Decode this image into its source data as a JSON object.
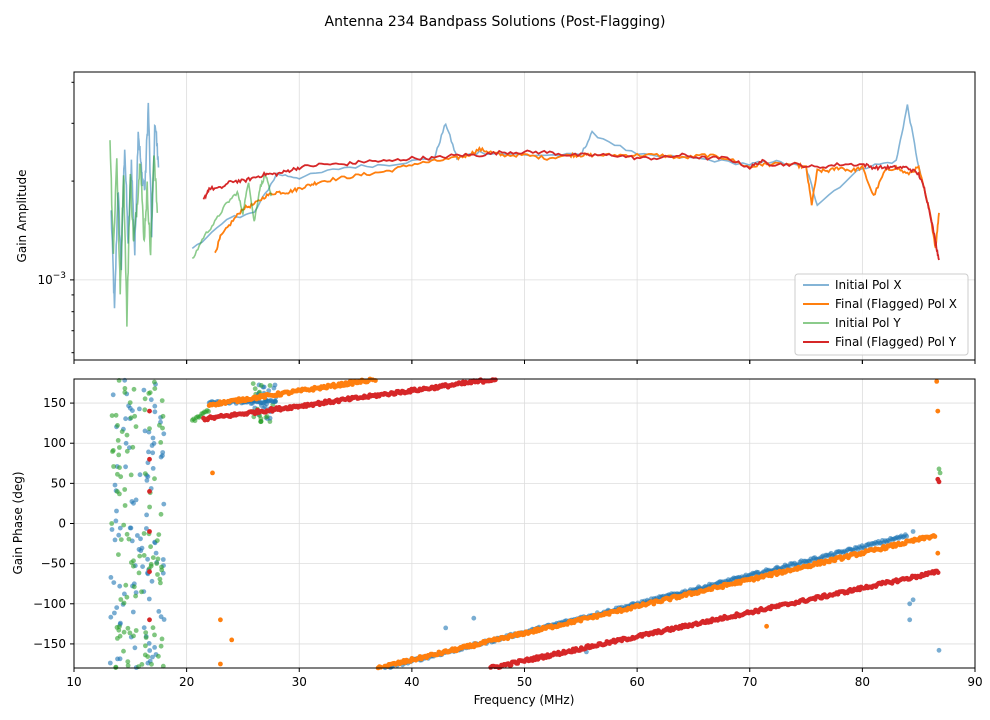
{
  "figure": {
    "title": "Antenna 234 Bandpass Solutions (Post-Flagging)"
  },
  "colors": {
    "initial_x": "#1f77b4",
    "final_x": "#ff7f0e",
    "initial_y": "#2ca02c",
    "final_y": "#d62728",
    "grid": "#dddddd"
  },
  "chart_data": [
    {
      "type": "line",
      "panel": "amplitude",
      "xlabel": "",
      "ylabel": "Gain Amplitude",
      "yscale": "log",
      "xlim": [
        10,
        90
      ],
      "ylim": [
        0.00057,
        0.0043
      ],
      "ytick_labels": [
        {
          "value": 0.001,
          "label": "10",
          "exp": "−3"
        }
      ],
      "grid": true,
      "legend_position": "lower-right",
      "legend": [
        "Initial Pol X",
        "Final (Flagged) Pol X",
        "Initial Pol Y",
        "Final (Flagged) Pol Y"
      ],
      "series": [
        {
          "name": "Initial Pol X",
          "color_key": "initial_x",
          "alpha": 0.55,
          "segments": [
            {
              "x": [
                13.3,
                13.6,
                13.9,
                14.2,
                14.5,
                14.8,
                15.1,
                15.4,
                15.7,
                16.0,
                16.3,
                16.6,
                16.9,
                17.2,
                17.5
              ],
              "y": [
                0.0016,
                0.0008,
                0.0019,
                0.0011,
                0.0026,
                0.0013,
                0.0023,
                0.0012,
                0.0029,
                0.0021,
                0.0019,
                0.0034,
                0.0014,
                0.0031,
                0.0022
              ]
            },
            {
              "x": [
                20.5,
                24,
                26,
                28,
                30,
                34,
                38,
                42,
                43,
                44,
                46,
                50,
                55,
                56,
                60,
                65,
                70,
                72,
                75,
                76,
                80,
                83,
                84,
                85,
                86,
                86.7
              ],
              "y": [
                0.00125,
                0.00155,
                0.0016,
                0.0021,
                0.00205,
                0.0022,
                0.00225,
                0.00235,
                0.003,
                0.00235,
                0.00245,
                0.0024,
                0.0024,
                0.0028,
                0.0024,
                0.00235,
                0.00225,
                0.0023,
                0.0022,
                0.0017,
                0.0022,
                0.0023,
                0.0034,
                0.0022,
                0.0016,
                0.0012
              ]
            }
          ]
        },
        {
          "name": "Final (Flagged) Pol X",
          "color_key": "final_x",
          "alpha": 1.0,
          "segments": [
            {
              "x": [
                22.5,
                23,
                24,
                25,
                26,
                27,
                28,
                29,
                30,
                31,
                32,
                34,
                36,
                38,
                40,
                42,
                44,
                45,
                46,
                47,
                48,
                50,
                52,
                54,
                55,
                56,
                58,
                60,
                62,
                64,
                66,
                68,
                70,
                71,
                72,
                74,
                75,
                75.5,
                76,
                77,
                78,
                79,
                80,
                81,
                82,
                83,
                84,
                85,
                86,
                86.5,
                86.8
              ],
              "y": [
                0.0012,
                0.00135,
                0.0015,
                0.00165,
                0.0017,
                0.0018,
                0.00185,
                0.00185,
                0.0019,
                0.00195,
                0.002,
                0.00205,
                0.0021,
                0.00215,
                0.00225,
                0.0023,
                0.00235,
                0.0024,
                0.0025,
                0.00245,
                0.0024,
                0.0024,
                0.00235,
                0.0024,
                0.0024,
                0.0024,
                0.0024,
                0.0024,
                0.0024,
                0.00235,
                0.0024,
                0.00235,
                0.0022,
                0.00225,
                0.00225,
                0.00225,
                0.0022,
                0.0017,
                0.00215,
                0.00215,
                0.0022,
                0.00215,
                0.0022,
                0.0018,
                0.00215,
                0.0022,
                0.0021,
                0.0022,
                0.0016,
                0.00125,
                0.0016
              ]
            }
          ]
        },
        {
          "name": "Initial Pol Y",
          "color_key": "initial_y",
          "alpha": 0.55,
          "segments": [
            {
              "x": [
                13.2,
                13.5,
                13.8,
                14.1,
                14.4,
                14.7,
                15.0,
                15.3,
                15.6,
                15.9,
                16.2,
                16.5,
                16.8,
                17.1,
                17.4
              ],
              "y": [
                0.0027,
                0.0012,
                0.0024,
                0.0009,
                0.0022,
                0.00075,
                0.0021,
                0.0013,
                0.0017,
                0.0024,
                0.0013,
                0.0019,
                0.0012,
                0.0025,
                0.0016
              ]
            },
            {
              "x": [
                20.5,
                21.5,
                22.5,
                23.5,
                24.5,
                25,
                25.5,
                26,
                26.5,
                27,
                27.5
              ],
              "y": [
                0.00115,
                0.00135,
                0.0015,
                0.0017,
                0.00185,
                0.0016,
                0.002,
                0.0015,
                0.0019,
                0.0021,
                0.0018
              ]
            }
          ]
        },
        {
          "name": "Final (Flagged) Pol Y",
          "color_key": "final_y",
          "alpha": 1.0,
          "segments": [
            {
              "x": [
                21.5,
                22,
                23,
                24,
                25,
                26,
                27,
                28,
                29,
                30,
                32,
                34,
                36,
                38,
                40,
                42,
                44,
                46,
                48,
                50,
                52,
                54,
                56,
                58,
                60,
                62,
                64,
                66,
                68,
                70,
                71,
                72,
                74,
                76,
                78,
                80,
                81,
                82,
                83,
                84,
                85,
                85.5,
                86,
                86.5,
                86.8
              ],
              "y": [
                0.00175,
                0.0019,
                0.0019,
                0.002,
                0.002,
                0.00205,
                0.0021,
                0.0021,
                0.00215,
                0.0022,
                0.00225,
                0.00225,
                0.0023,
                0.0023,
                0.00235,
                0.00235,
                0.0024,
                0.0024,
                0.00245,
                0.00245,
                0.00245,
                0.0024,
                0.0024,
                0.0024,
                0.00235,
                0.00235,
                0.0024,
                0.00235,
                0.00235,
                0.0022,
                0.0023,
                0.00225,
                0.00225,
                0.0022,
                0.00225,
                0.00225,
                0.0022,
                0.0022,
                0.0022,
                0.0022,
                0.0021,
                0.0019,
                0.0016,
                0.0013,
                0.00115
              ]
            }
          ]
        }
      ]
    },
    {
      "type": "scatter",
      "panel": "phase",
      "xlabel": "Frequency (MHz)",
      "ylabel": "Gain Phase (deg)",
      "xlim": [
        10,
        90
      ],
      "ylim": [
        -180,
        180
      ],
      "xticks": [
        10,
        20,
        30,
        40,
        50,
        60,
        70,
        80,
        90
      ],
      "yticks": [
        -150,
        -100,
        -50,
        0,
        50,
        100,
        150
      ],
      "grid": true,
      "series": [
        {
          "name": "Initial Pol X",
          "color_key": "initial_x",
          "alpha": 0.6,
          "note": "scattered points at 13-18 MHz, 26-28 MHz and isolated points at 43-46, 55, 84-87 MHz",
          "trend_segments": [
            {
              "x0": 22,
              "x1": 28,
              "y0": 150,
              "y1": 152
            },
            {
              "x0": 37.5,
              "x1": 84,
              "y0": -180,
              "y1": -15
            }
          ]
        },
        {
          "name": "Final (Flagged) Pol X",
          "color_key": "final_x",
          "alpha": 1.0,
          "trend_segments": [
            {
              "x0": 22,
              "x1": 37,
              "y0": 148,
              "y1": 180
            },
            {
              "x0": 37,
              "x1": 86.5,
              "y0": -180,
              "y1": -15
            }
          ],
          "isolated": [
            {
              "x": 22.3,
              "y": 63
            },
            {
              "x": 23,
              "y": -120
            },
            {
              "x": 24,
              "y": -145
            },
            {
              "x": 23,
              "y": -175
            },
            {
              "x": 71.5,
              "y": -128
            },
            {
              "x": 86.6,
              "y": 177
            },
            {
              "x": 86.7,
              "y": 140
            },
            {
              "x": 86.7,
              "y": -37
            }
          ]
        },
        {
          "name": "Initial Pol Y",
          "color_key": "initial_y",
          "alpha": 0.6,
          "note": "scattered points at 13-18 MHz and 25-28 MHz",
          "trend_segments": [
            {
              "x0": 20.5,
              "x1": 22,
              "y0": 127,
              "y1": 142
            }
          ],
          "isolated": [
            {
              "x": 86.8,
              "y": 68
            },
            {
              "x": 86.9,
              "y": 63
            }
          ]
        },
        {
          "name": "Final (Flagged) Pol Y",
          "color_key": "final_y",
          "alpha": 1.0,
          "trend_segments": [
            {
              "x0": 21.5,
              "x1": 47.5,
              "y0": 130,
              "y1": 180
            },
            {
              "x0": 47,
              "x1": 86.8,
              "y0": -180,
              "y1": -60
            }
          ],
          "isolated": [
            {
              "x": 16.7,
              "y": 80
            },
            {
              "x": 16.7,
              "y": 40
            },
            {
              "x": 16.7,
              "y": -10
            },
            {
              "x": 16.7,
              "y": -60
            },
            {
              "x": 16.7,
              "y": -120
            },
            {
              "x": 16.7,
              "y": 140
            },
            {
              "x": 86.7,
              "y": 55
            },
            {
              "x": 86.8,
              "y": 52
            }
          ]
        }
      ]
    }
  ]
}
